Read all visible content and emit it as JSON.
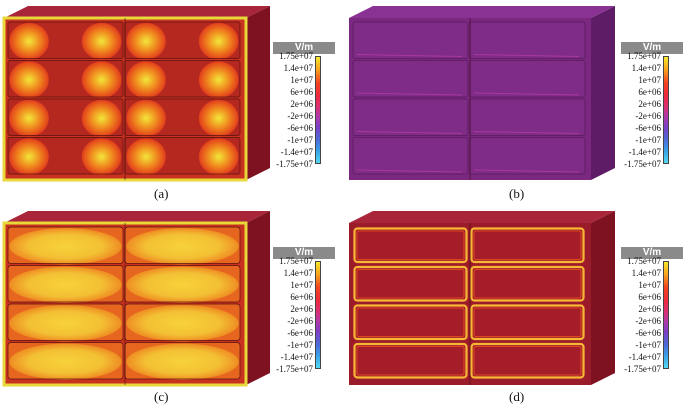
{
  "colorbar": {
    "unit": "V/m",
    "ticks": [
      "1.75e+07",
      "1.4e+07",
      "1e+07",
      "6e+06",
      "2e+06",
      "-2e+06",
      "-6e+06",
      "-1e+07",
      "-1.4e+07",
      "-1.75e+07"
    ]
  },
  "panels": [
    {
      "caption": "(a)",
      "mode": "a"
    },
    {
      "caption": "(b)",
      "mode": "b"
    },
    {
      "caption": "(c)",
      "mode": "c"
    },
    {
      "caption": "(d)",
      "mode": "d"
    }
  ],
  "colors": {
    "box_front": "#9a1b2a",
    "box_side": "#7e1220",
    "box_top": "#a8253a",
    "box_b_front": "#7a2880",
    "box_b_side": "#5f1c66",
    "box_b_top": "#8a3194",
    "hot": "#f3e63a",
    "warm": "#f08a1e",
    "mid": "#e3431c"
  }
}
